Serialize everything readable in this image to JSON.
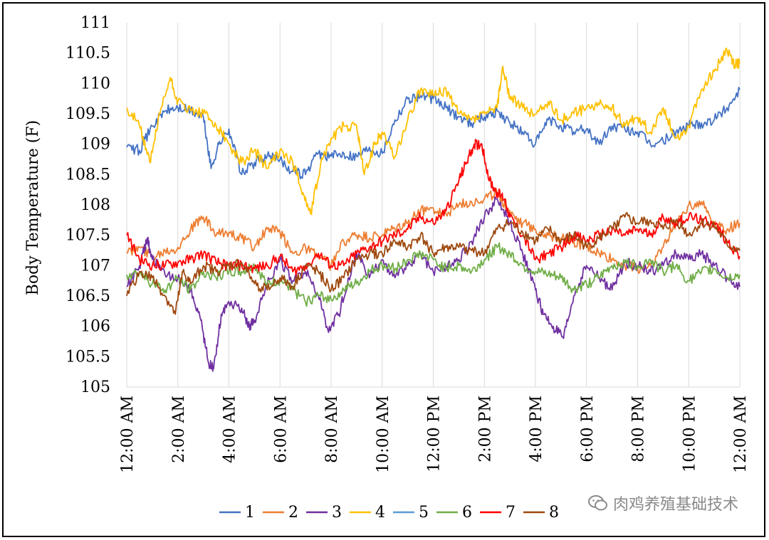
{
  "chart_data": {
    "type": "line",
    "title": "",
    "ylabel": "Body Temperature (F)",
    "xlabel": "",
    "ylim": [
      105,
      111
    ],
    "y_ticks": [
      "105",
      "105.5",
      "106",
      "106.5",
      "107",
      "107.5",
      "108",
      "108.5",
      "109",
      "109.5",
      "110",
      "110.5",
      "111"
    ],
    "x_range_hours": [
      0,
      24
    ],
    "x_ticks": [
      "12:00 AM",
      "2:00 AM",
      "4:00 AM",
      "6:00 AM",
      "8:00 AM",
      "10:00 AM",
      "12:00 PM",
      "2:00 PM",
      "4:00 PM",
      "6:00 PM",
      "8:00 PM",
      "10:00 PM",
      "12:00 AM"
    ],
    "grid": "vertical",
    "legend_position": "bottom",
    "series": [
      {
        "name": "1",
        "color": "#4472C4",
        "x": [
          0,
          0.5,
          1,
          1.5,
          2,
          2.5,
          3,
          3.3,
          3.6,
          4,
          4.5,
          5,
          5.5,
          6,
          6.5,
          7,
          7.5,
          8,
          8.5,
          9,
          9.5,
          10,
          10.5,
          11,
          11.5,
          12,
          12.5,
          13,
          13.5,
          14,
          14.5,
          15,
          15.5,
          16,
          16.5,
          17,
          17.5,
          18,
          18.5,
          19,
          19.5,
          20,
          20.5,
          21,
          21.5,
          22,
          22.5,
          23,
          23.5,
          24
        ],
        "y": [
          108.95,
          108.9,
          109.3,
          109.55,
          109.6,
          109.55,
          109.45,
          108.6,
          109.0,
          109.25,
          108.5,
          108.7,
          108.8,
          108.75,
          108.55,
          108.5,
          108.85,
          108.8,
          108.85,
          108.8,
          108.95,
          108.85,
          109.4,
          109.75,
          109.8,
          109.75,
          109.6,
          109.45,
          109.35,
          109.45,
          109.55,
          109.35,
          109.2,
          109.0,
          109.4,
          109.3,
          109.2,
          109.25,
          109.0,
          109.3,
          109.25,
          109.2,
          109.0,
          109.05,
          109.2,
          109.3,
          109.35,
          109.4,
          109.6,
          109.9
        ]
      },
      {
        "name": "2",
        "color": "#ED7D31",
        "x": [
          0,
          0.5,
          1,
          1.5,
          2,
          2.5,
          3,
          3.5,
          4,
          4.5,
          5,
          5.5,
          6,
          6.5,
          7,
          7.5,
          8,
          8.5,
          9,
          9.5,
          10,
          10.5,
          11,
          11.5,
          12,
          12.5,
          13,
          13.5,
          14,
          14.5,
          15,
          15.5,
          16,
          16.5,
          17,
          17.5,
          18,
          18.5,
          19,
          19.5,
          20,
          20.5,
          21,
          21.5,
          22,
          22.5,
          23,
          23.5,
          24
        ],
        "y": [
          107.2,
          107.3,
          107.15,
          107.25,
          107.3,
          107.6,
          107.8,
          107.5,
          107.55,
          107.45,
          107.3,
          107.6,
          107.55,
          107.2,
          107.3,
          107.15,
          107.0,
          107.4,
          107.5,
          107.45,
          107.5,
          107.6,
          107.7,
          107.9,
          107.95,
          107.85,
          108.0,
          108.05,
          108.1,
          108.2,
          107.9,
          107.7,
          107.6,
          107.5,
          107.45,
          107.4,
          107.3,
          107.2,
          107.1,
          107.0,
          106.95,
          107.0,
          107.3,
          107.7,
          108.0,
          108.05,
          107.7,
          107.6,
          107.7
        ]
      },
      {
        "name": "3",
        "color": "#7030A0",
        "x": [
          0,
          0.5,
          0.8,
          1,
          1.5,
          2,
          2.5,
          2.9,
          3.2,
          3.4,
          3.7,
          4,
          4.5,
          4.8,
          5,
          5.5,
          6,
          6.5,
          7,
          7.5,
          7.9,
          8.3,
          8.7,
          9,
          9.5,
          10,
          10.5,
          11,
          11.5,
          12,
          12.5,
          13,
          13.5,
          14,
          14.5,
          15,
          15.5,
          16,
          16.3,
          16.7,
          17.1,
          17.5,
          18,
          18.5,
          19,
          19.5,
          20,
          20.5,
          21,
          21.5,
          22,
          22.5,
          23,
          23.5,
          24
        ],
        "y": [
          106.65,
          107.0,
          107.45,
          107.1,
          106.85,
          106.8,
          106.6,
          106.1,
          105.4,
          105.3,
          106.2,
          106.4,
          106.3,
          106.0,
          106.1,
          106.7,
          107.1,
          106.75,
          106.9,
          106.5,
          105.9,
          106.2,
          106.8,
          107.2,
          106.8,
          107.1,
          106.8,
          107.0,
          107.2,
          106.9,
          107.0,
          107.1,
          107.4,
          107.8,
          108.1,
          107.7,
          107.2,
          106.6,
          106.2,
          106.0,
          105.8,
          106.5,
          107.0,
          106.8,
          106.6,
          107.05,
          107.0,
          106.9,
          107.0,
          107.2,
          107.1,
          107.2,
          107.0,
          106.8,
          106.65
        ]
      },
      {
        "name": "4",
        "color": "#FFC000",
        "x": [
          0,
          0.5,
          0.9,
          1.3,
          1.7,
          2,
          2.5,
          3,
          3.5,
          4,
          4.5,
          5,
          5.5,
          6,
          6.5,
          6.9,
          7.2,
          7.6,
          8,
          8.5,
          9,
          9.3,
          9.7,
          10,
          10.5,
          11,
          11.5,
          12,
          12.5,
          13,
          13.5,
          14,
          14.5,
          14.7,
          15,
          15.5,
          16,
          16.5,
          17,
          17.5,
          18,
          18.5,
          19,
          19.5,
          20,
          20.5,
          21,
          21.5,
          22,
          22.5,
          23,
          23.5,
          23.8,
          24
        ],
        "y": [
          109.6,
          109.3,
          108.7,
          109.5,
          110.1,
          109.7,
          109.55,
          109.5,
          109.3,
          109.0,
          108.7,
          108.9,
          108.6,
          108.9,
          108.7,
          108.2,
          107.85,
          108.7,
          109.1,
          109.3,
          109.3,
          108.5,
          109.0,
          109.2,
          108.8,
          109.4,
          109.9,
          109.8,
          109.9,
          109.5,
          109.4,
          109.5,
          109.6,
          110.25,
          109.8,
          109.6,
          109.5,
          109.7,
          109.4,
          109.5,
          109.6,
          109.65,
          109.6,
          109.3,
          109.45,
          109.2,
          109.6,
          109.1,
          109.3,
          109.9,
          110.2,
          110.55,
          110.3,
          110.35
        ]
      },
      {
        "name": "5",
        "color": "#5B9BD5",
        "x": [],
        "y": []
      },
      {
        "name": "6",
        "color": "#70AD47",
        "x": [
          0,
          0.5,
          1,
          1.5,
          2,
          2.5,
          3,
          3.5,
          4,
          4.5,
          5,
          5.5,
          6,
          6.5,
          7,
          7.5,
          8,
          8.5,
          9,
          9.5,
          10,
          10.5,
          11,
          11.5,
          12,
          12.5,
          13,
          13.5,
          14,
          14.5,
          15,
          15.5,
          16,
          16.5,
          17,
          17.5,
          18,
          18.5,
          19,
          19.5,
          20,
          20.5,
          21,
          21.5,
          22,
          22.5,
          23,
          23.5,
          24
        ],
        "y": [
          106.85,
          106.9,
          106.7,
          106.6,
          106.8,
          106.6,
          106.9,
          106.8,
          106.9,
          106.9,
          107.0,
          106.7,
          106.75,
          106.6,
          106.4,
          106.5,
          106.45,
          106.6,
          106.7,
          106.9,
          107.0,
          106.95,
          107.1,
          107.2,
          107.1,
          106.95,
          107.0,
          106.9,
          107.1,
          107.3,
          107.2,
          107.0,
          106.9,
          106.85,
          106.8,
          106.6,
          106.7,
          106.8,
          107.0,
          107.05,
          107.0,
          107.1,
          106.9,
          107.0,
          106.75,
          106.9,
          106.95,
          106.8,
          106.85
        ]
      },
      {
        "name": "7",
        "color": "#FF0000",
        "x": [
          0,
          0.5,
          1,
          1.5,
          2,
          2.5,
          3,
          3.5,
          4,
          4.5,
          5,
          5.5,
          6,
          6.5,
          7,
          7.5,
          8,
          8.5,
          9,
          9.5,
          10,
          10.5,
          11,
          11.5,
          12,
          12.5,
          13,
          13.3,
          13.6,
          13.9,
          14.2,
          14.5,
          14.8,
          15,
          15.5,
          16,
          16.5,
          17,
          17.5,
          18,
          18.5,
          19,
          19.5,
          20,
          20.5,
          21,
          21.5,
          22,
          22.5,
          23,
          23.5,
          24
        ],
        "y": [
          107.5,
          107.1,
          107.0,
          107.0,
          107.05,
          107.1,
          107.2,
          107.05,
          107.0,
          107.0,
          106.95,
          107.0,
          107.15,
          106.9,
          107.0,
          107.2,
          107.0,
          107.0,
          107.2,
          107.3,
          107.4,
          107.5,
          107.6,
          107.8,
          107.7,
          107.9,
          108.4,
          108.7,
          109.0,
          109.0,
          108.4,
          108.2,
          108.1,
          107.8,
          107.5,
          107.1,
          107.2,
          107.3,
          107.5,
          107.4,
          107.5,
          107.6,
          107.5,
          107.6,
          107.5,
          107.8,
          107.7,
          107.8,
          107.75,
          107.7,
          107.4,
          107.15
        ]
      },
      {
        "name": "8",
        "color": "#9E480E",
        "x": [
          0,
          0.5,
          1,
          1.5,
          1.9,
          2.2,
          2.5,
          3,
          3.5,
          4,
          4.5,
          5,
          5.5,
          6,
          6.5,
          7,
          7.5,
          8,
          8.5,
          9,
          9.5,
          10,
          10.5,
          11,
          11.5,
          12,
          12.5,
          13,
          13.5,
          14,
          14.5,
          15,
          15.5,
          16,
          16.5,
          17,
          17.5,
          18,
          18.5,
          19,
          19.5,
          20,
          20.5,
          21,
          21.5,
          22,
          22.5,
          23,
          23.5,
          24
        ],
        "y": [
          106.5,
          106.9,
          106.8,
          106.5,
          106.2,
          106.9,
          106.7,
          107.0,
          106.9,
          107.0,
          107.05,
          106.7,
          106.6,
          106.8,
          106.65,
          107.0,
          106.9,
          106.6,
          106.8,
          107.1,
          107.2,
          107.2,
          107.4,
          107.3,
          107.5,
          107.2,
          107.3,
          107.3,
          107.25,
          107.2,
          107.6,
          107.7,
          107.55,
          107.4,
          107.6,
          107.4,
          107.5,
          107.3,
          107.45,
          107.6,
          107.8,
          107.7,
          107.75,
          107.6,
          107.75,
          107.5,
          107.7,
          107.65,
          107.35,
          107.25
        ]
      }
    ]
  },
  "watermark": {
    "text": "肉鸡养殖基础技术"
  }
}
